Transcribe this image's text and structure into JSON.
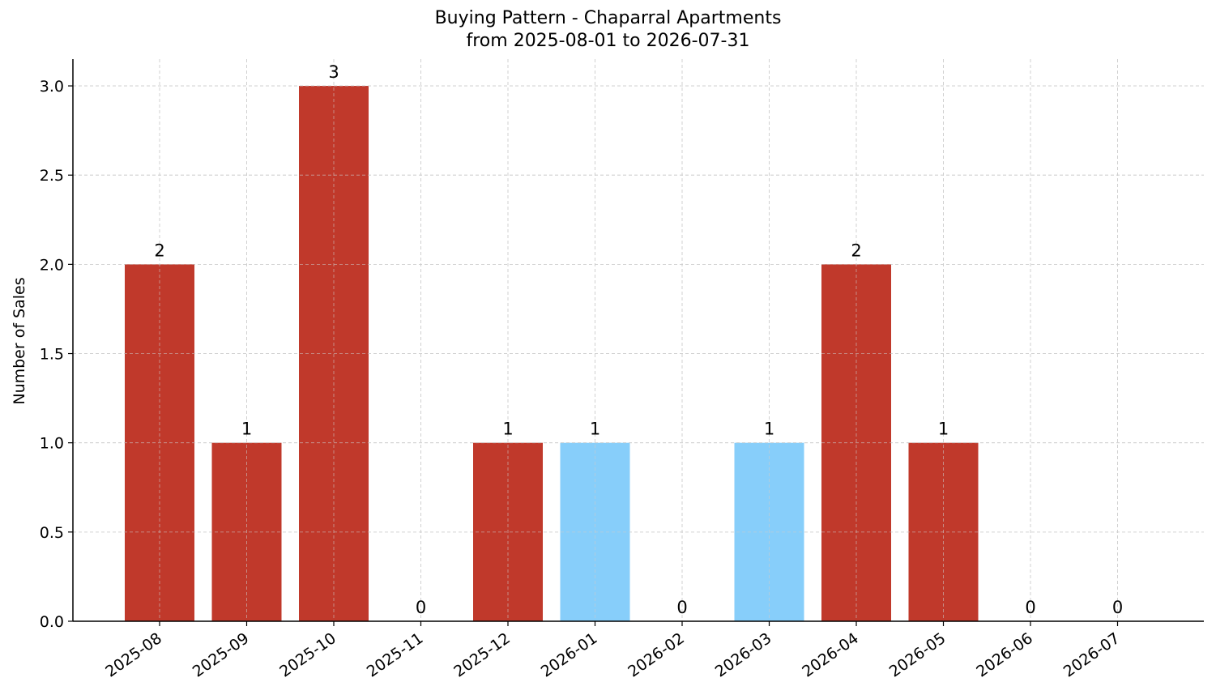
{
  "chart_data": {
    "type": "bar",
    "title": "Buying Pattern - Chaparral Apartments",
    "subtitle": "from 2025-08-01 to 2026-07-31",
    "xlabel": "",
    "ylabel": "Number of Sales",
    "categories": [
      "2025-08",
      "2025-09",
      "2025-10",
      "2025-11",
      "2025-12",
      "2026-01",
      "2026-02",
      "2026-03",
      "2026-04",
      "2026-05",
      "2026-06",
      "2026-07"
    ],
    "values": [
      2,
      1,
      3,
      0,
      1,
      1,
      0,
      1,
      2,
      1,
      0,
      0
    ],
    "bar_colors": [
      "#c0392b",
      "#c0392b",
      "#c0392b",
      "#c0392b",
      "#c0392b",
      "#87cefa",
      "#c0392b",
      "#87cefa",
      "#c0392b",
      "#c0392b",
      "#c0392b",
      "#c0392b"
    ],
    "data_labels": [
      "2",
      "1",
      "3",
      "0",
      "1",
      "1",
      "0",
      "1",
      "2",
      "1",
      "0",
      "0"
    ],
    "ylim": [
      0,
      3.15
    ],
    "yticks": [
      0.0,
      0.5,
      1.0,
      1.5,
      2.0,
      2.5,
      3.0
    ],
    "ytick_labels": [
      "0.0",
      "0.5",
      "1.0",
      "1.5",
      "2.0",
      "2.5",
      "3.0"
    ],
    "grid": true,
    "legend": "none"
  }
}
